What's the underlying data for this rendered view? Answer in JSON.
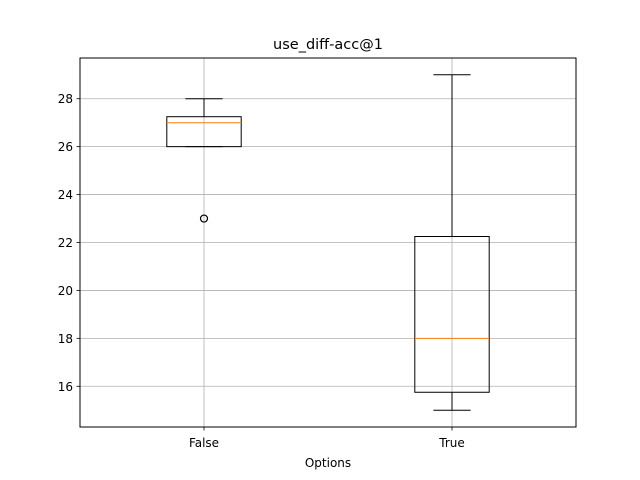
{
  "chart_data": {
    "type": "boxplot",
    "title": "use_diff-acc@1",
    "xlabel": "Options",
    "ylabel": "",
    "categories": [
      "False",
      "True"
    ],
    "ylim": [
      14.3,
      29.7
    ],
    "yticks": [
      16,
      18,
      20,
      22,
      24,
      26,
      28
    ],
    "grid": true,
    "boxes": [
      {
        "label": "False",
        "whislo": 26,
        "q1": 26,
        "med": 27,
        "q3": 27.25,
        "whishi": 28,
        "fliers": [
          23
        ]
      },
      {
        "label": "True",
        "whislo": 15,
        "q1": 15.75,
        "med": 18,
        "q3": 22.25,
        "whishi": 29,
        "fliers": []
      }
    ],
    "colors": {
      "box": "#000000",
      "median": "#ff7f0e",
      "grid": "#b0b0b0"
    }
  }
}
